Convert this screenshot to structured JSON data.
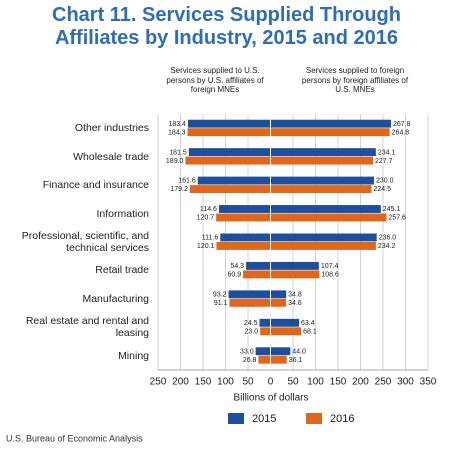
{
  "chart_data": {
    "type": "butterfly-bar",
    "title": "Chart 11. Services Supplied Through Affiliates by Industry, 2015 and 2016",
    "x_label": "Billions of dollars",
    "source": "U.S. Bureau of Economic Analysis",
    "categories": [
      "Other industries",
      "Wholesale trade",
      "Finance and insurance",
      "Information",
      "Professional, scientific, and technical services",
      "Retail trade",
      "Manufacturing",
      "Real estate and rental and leasing",
      "Mining"
    ],
    "legend": [
      {
        "name": "2015",
        "color": "#1d4f9e"
      },
      {
        "name": "2016",
        "color": "#e0661c"
      }
    ],
    "groups": [
      {
        "heading": "Services supplied to U.S. persons by U.S. affiliates of foreign MNEs",
        "direction": "left",
        "series": [
          {
            "values": [
              183.4,
              181.5,
              161.6,
              114.6,
              111.6,
              54.3,
              93.2,
              24.5,
              33.0
            ],
            "value_labels": [
              "183.4",
              "181.5",
              "161.6",
              "114.6",
              "111.6",
              "54.3",
              "93.2",
              "24.5",
              "33.0"
            ]
          },
          {
            "values": [
              184.3,
              189.0,
              179.2,
              120.7,
              120.1,
              60.9,
              91.1,
              23.0,
              26.8
            ],
            "value_labels": [
              "184.3",
              "189.0",
              "179.2",
              "120.7",
              "120.1",
              "60.9",
              "91.1",
              "23.0",
              "26.8"
            ]
          }
        ]
      },
      {
        "heading": "Services supplied to foreign persons by foreign affiliates of U.S. MNEs",
        "direction": "right",
        "series": [
          {
            "values": [
              267.8,
              234.1,
              230.0,
              245.1,
              236.0,
              107.4,
              34.8,
              63.4,
              44.0
            ],
            "value_labels": [
              "267.8",
              "234.1",
              "230.0",
              "245.1",
              "236.0",
              "107.4",
              "34.8",
              "63.4",
              "44.0"
            ]
          },
          {
            "values": [
              264.8,
              227.7,
              224.5,
              257.6,
              234.2,
              108.6,
              34.6,
              68.1,
              36.1
            ],
            "value_labels": [
              "264.8",
              "227.7",
              "224.5",
              "257.6",
              "234.2",
              "108.6",
              "34.6",
              "68.1",
              "36.1"
            ]
          }
        ]
      }
    ],
    "xlim": [
      -250,
      350
    ],
    "xticks": [
      {
        "value": -250,
        "label": "250"
      },
      {
        "value": -200,
        "label": "200"
      },
      {
        "value": -150,
        "label": "150"
      },
      {
        "value": -100,
        "label": "100"
      },
      {
        "value": -50,
        "label": "50"
      },
      0,
      50,
      100,
      150,
      200,
      250,
      300,
      350
    ],
    "grid": true
  }
}
